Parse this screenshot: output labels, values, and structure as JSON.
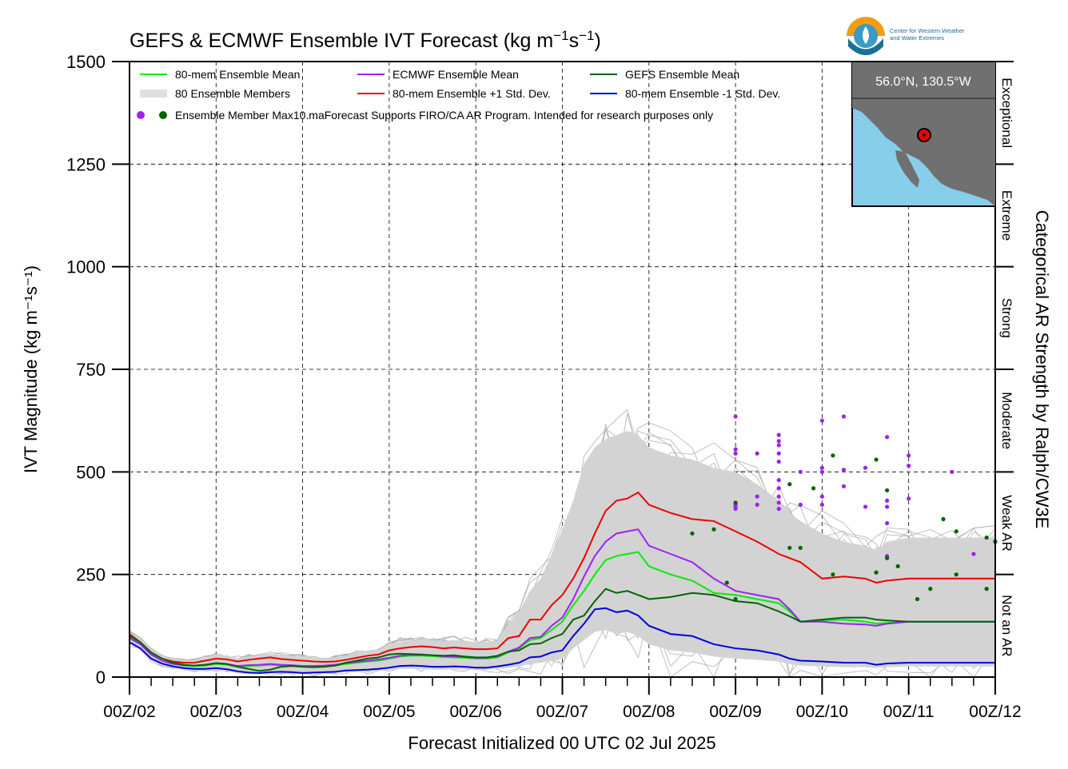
{
  "chart_data": {
    "type": "line",
    "title": "GEFS & ECMWF Ensemble IVT Forecast (kg m⁻¹s⁻¹)",
    "xlabel": "Forecast Initialized 00 UTC 02 Jul 2025",
    "ylabel": "IVT Magnitude (kg m⁻¹s⁻¹)",
    "right_label": "Categorical AR Strength by Ralph/CW3E",
    "x_unit": "days since 00Z/02",
    "xlim": [
      0,
      10
    ],
    "ylim": [
      0,
      1500
    ],
    "x_ticks": [
      0,
      1,
      2,
      3,
      4,
      5,
      6,
      7,
      8,
      9,
      10
    ],
    "x_tick_labels": [
      "00Z/02",
      "00Z/03",
      "00Z/04",
      "00Z/05",
      "00Z/06",
      "00Z/07",
      "00Z/08",
      "00Z/09",
      "00Z/10",
      "00Z/11",
      "00Z/12"
    ],
    "y_ticks": [
      0,
      250,
      500,
      750,
      1000,
      1250,
      1500
    ],
    "y_tick_labels": [
      "0",
      "250",
      "500",
      "750",
      "1000",
      "1250",
      "1500"
    ],
    "grid": true,
    "legend_position": "top-left",
    "categories": [
      {
        "label": "Not an AR",
        "from": 0,
        "to": 250
      },
      {
        "label": "Weak AR",
        "from": 250,
        "to": 500
      },
      {
        "label": "Moderate",
        "from": 500,
        "to": 750
      },
      {
        "label": "Strong",
        "from": 750,
        "to": 1000
      },
      {
        "label": "Extreme",
        "from": 1000,
        "to": 1250
      },
      {
        "label": "Exceptional",
        "from": 1250,
        "to": 1500
      }
    ],
    "legend": [
      {
        "label": "80-mem Ensemble Mean",
        "color": "#00ee00",
        "kind": "line"
      },
      {
        "label": "ECMWF Ensemble Mean",
        "color": "#a020f0",
        "kind": "line"
      },
      {
        "label": "GEFS Ensemble Mean",
        "color": "#006400",
        "kind": "line"
      },
      {
        "label": "80 Ensemble Members",
        "color": "#aaaaaa",
        "kind": "multi"
      },
      {
        "label": "80-mem Ensemble +1 Std. Dev.",
        "color": "#ee0000",
        "kind": "line"
      },
      {
        "label": "80-mem Ensemble -1 Std. Dev.",
        "color": "#0000dd",
        "kind": "line"
      }
    ],
    "legend_dots_label": "Ensemble Member Max10.maForecast Supports FIRO/CA AR Program. Intended for research purposes only",
    "x": [
      0,
      0.125,
      0.25,
      0.375,
      0.5,
      0.625,
      0.75,
      0.875,
      1,
      1.125,
      1.25,
      1.375,
      1.5,
      1.625,
      1.75,
      1.875,
      2,
      2.125,
      2.25,
      2.375,
      2.5,
      2.625,
      2.75,
      2.875,
      3,
      3.125,
      3.25,
      3.375,
      3.5,
      3.625,
      3.75,
      3.875,
      4,
      4.125,
      4.25,
      4.375,
      4.5,
      4.625,
      4.75,
      4.875,
      5,
      5.125,
      5.25,
      5.375,
      5.5,
      5.625,
      5.75,
      5.875,
      6,
      6.25,
      6.5,
      6.75,
      7,
      7.25,
      7.5,
      7.625,
      7.75,
      8,
      8.25,
      8.5,
      8.625,
      8.75,
      9,
      9.25,
      9.5,
      9.75,
      10
    ],
    "series": [
      {
        "name": "80-mem Ensemble +1 Std. Dev.",
        "color": "#ee0000",
        "values": [
          105,
          85,
          60,
          45,
          38,
          35,
          35,
          40,
          45,
          43,
          38,
          42,
          45,
          48,
          44,
          42,
          40,
          38,
          37,
          38,
          42,
          47,
          52,
          55,
          65,
          70,
          73,
          75,
          73,
          70,
          72,
          70,
          68,
          68,
          70,
          95,
          100,
          140,
          140,
          175,
          200,
          240,
          290,
          350,
          405,
          430,
          435,
          450,
          420,
          400,
          385,
          380,
          355,
          330,
          300,
          290,
          280,
          240,
          245,
          240,
          230,
          235,
          240,
          240,
          240,
          240,
          240
        ]
      },
      {
        "name": "80-mem Ensemble Mean",
        "color": "#00ee00",
        "values": [
          95,
          80,
          55,
          40,
          32,
          28,
          27,
          28,
          32,
          30,
          25,
          27,
          28,
          30,
          28,
          27,
          25,
          25,
          26,
          28,
          32,
          35,
          38,
          40,
          45,
          50,
          52,
          52,
          51,
          49,
          48,
          47,
          45,
          45,
          48,
          60,
          70,
          90,
          95,
          115,
          135,
          175,
          210,
          250,
          285,
          295,
          300,
          305,
          270,
          250,
          235,
          205,
          200,
          190,
          180,
          160,
          135,
          138,
          140,
          135,
          130,
          132,
          135,
          135,
          135,
          135,
          135
        ]
      },
      {
        "name": "ECMWF Ensemble Mean",
        "color": "#a020f0",
        "values": [
          95,
          80,
          55,
          40,
          32,
          29,
          28,
          30,
          34,
          32,
          27,
          29,
          30,
          32,
          30,
          29,
          27,
          27,
          28,
          30,
          34,
          37,
          40,
          43,
          47,
          52,
          54,
          54,
          53,
          51,
          50,
          49,
          47,
          47,
          50,
          62,
          72,
          95,
          98,
          125,
          145,
          190,
          245,
          295,
          330,
          350,
          355,
          360,
          320,
          300,
          280,
          240,
          210,
          200,
          190,
          165,
          135,
          135,
          130,
          128,
          125,
          130,
          135,
          135,
          135,
          135,
          135
        ]
      },
      {
        "name": "GEFS Ensemble Mean",
        "color": "#006400",
        "values": [
          100,
          85,
          60,
          45,
          35,
          30,
          28,
          30,
          34,
          32,
          25,
          20,
          15,
          18,
          25,
          27,
          25,
          24,
          25,
          28,
          35,
          40,
          45,
          48,
          55,
          57,
          56,
          55,
          53,
          52,
          53,
          50,
          48,
          48,
          52,
          62,
          65,
          80,
          82,
          95,
          105,
          140,
          150,
          185,
          215,
          205,
          210,
          200,
          190,
          195,
          205,
          200,
          185,
          180,
          160,
          148,
          135,
          140,
          145,
          145,
          140,
          138,
          135,
          135,
          135,
          135,
          135
        ]
      },
      {
        "name": "80-mem Ensemble -1 Std. Dev.",
        "color": "#0000dd",
        "values": [
          85,
          70,
          45,
          33,
          26,
          22,
          20,
          20,
          22,
          19,
          14,
          11,
          10,
          12,
          13,
          12,
          10,
          11,
          12,
          13,
          16,
          17,
          18,
          20,
          23,
          27,
          28,
          27,
          25,
          25,
          26,
          25,
          23,
          23,
          26,
          30,
          35,
          48,
          50,
          60,
          65,
          100,
          130,
          165,
          168,
          158,
          162,
          150,
          125,
          105,
          100,
          80,
          70,
          65,
          55,
          45,
          40,
          38,
          35,
          35,
          30,
          33,
          35,
          35,
          35,
          35,
          35
        ]
      }
    ],
    "envelope_upper": [
      110,
      95,
      70,
      52,
      45,
      42,
      42,
      48,
      55,
      52,
      46,
      50,
      54,
      58,
      54,
      52,
      50,
      48,
      47,
      48,
      52,
      60,
      65,
      68,
      80,
      86,
      90,
      92,
      90,
      88,
      90,
      88,
      86,
      86,
      90,
      130,
      160,
      210,
      240,
      300,
      360,
      430,
      520,
      560,
      580,
      590,
      600,
      590,
      560,
      540,
      530,
      510,
      500,
      470,
      430,
      400,
      380,
      350,
      330,
      320,
      310,
      330,
      340,
      340,
      340,
      340,
      340
    ],
    "envelope_lower": [
      80,
      65,
      40,
      28,
      22,
      18,
      15,
      14,
      16,
      14,
      10,
      8,
      7,
      8,
      9,
      8,
      7,
      8,
      9,
      10,
      12,
      13,
      14,
      15,
      18,
      20,
      20,
      19,
      18,
      18,
      19,
      18,
      17,
      17,
      20,
      22,
      26,
      32,
      35,
      40,
      45,
      70,
      90,
      110,
      115,
      105,
      110,
      100,
      80,
      65,
      60,
      50,
      45,
      42,
      38,
      32,
      28,
      26,
      24,
      24,
      22,
      24,
      26,
      26,
      26,
      26,
      26
    ],
    "ecmwf_max_points": [
      [
        7,
        635
      ],
      [
        7,
        555
      ],
      [
        7,
        545
      ],
      [
        7,
        420
      ],
      [
        7,
        415
      ],
      [
        7,
        410
      ],
      [
        7.25,
        545
      ],
      [
        7.25,
        440
      ],
      [
        7.25,
        420
      ],
      [
        7.5,
        590
      ],
      [
        7.5,
        575
      ],
      [
        7.5,
        565
      ],
      [
        7.5,
        545
      ],
      [
        7.5,
        525
      ],
      [
        7.5,
        480
      ],
      [
        7.5,
        460
      ],
      [
        7.5,
        440
      ],
      [
        7.5,
        425
      ],
      [
        7.5,
        410
      ],
      [
        7.75,
        500
      ],
      [
        7.75,
        420
      ],
      [
        8,
        625
      ],
      [
        8,
        510
      ],
      [
        8,
        500
      ],
      [
        8,
        440
      ],
      [
        8,
        420
      ],
      [
        8.25,
        505
      ],
      [
        8.25,
        465
      ],
      [
        8.25,
        635
      ],
      [
        8.5,
        510
      ],
      [
        8.5,
        415
      ],
      [
        8.75,
        585
      ],
      [
        8.75,
        430
      ],
      [
        8.75,
        415
      ],
      [
        8.75,
        375
      ],
      [
        8.75,
        295
      ],
      [
        9,
        540
      ],
      [
        9,
        515
      ],
      [
        9,
        435
      ],
      [
        9.5,
        500
      ],
      [
        9.75,
        300
      ],
      [
        10,
        330
      ]
    ],
    "gefs_max_points": [
      [
        6.5,
        350
      ],
      [
        6.75,
        360
      ],
      [
        6.9,
        230
      ],
      [
        7,
        425
      ],
      [
        7,
        190
      ],
      [
        7.625,
        470
      ],
      [
        7.625,
        315
      ],
      [
        7.75,
        315
      ],
      [
        7.9,
        460
      ],
      [
        8.125,
        540
      ],
      [
        8.125,
        250
      ],
      [
        8.625,
        530
      ],
      [
        8.625,
        255
      ],
      [
        8.75,
        455
      ],
      [
        8.75,
        290
      ],
      [
        8.875,
        270
      ],
      [
        9.1,
        190
      ],
      [
        9.25,
        215
      ],
      [
        9.4,
        385
      ],
      [
        9.55,
        355
      ],
      [
        9.55,
        250
      ],
      [
        9.9,
        215
      ],
      [
        9.9,
        340
      ],
      [
        10,
        330
      ]
    ],
    "map": {
      "label": "56.0°N, 130.5°W",
      "land_color": "#707070",
      "water_color": "#87ceeb"
    },
    "logo": {
      "text_line1": "Center for Western Weather",
      "text_line2": "and Water Extremes"
    }
  }
}
